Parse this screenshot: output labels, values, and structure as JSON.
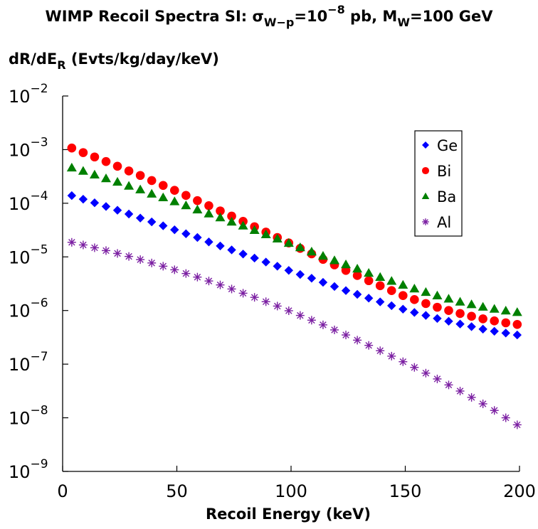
{
  "chart_data": {
    "type": "scatter",
    "title": "WIMP Recoil Spectra SI: σW−p=10−8 pb, MW=100 GeV",
    "title_parts": {
      "prefix": "WIMP Recoil Spectra SI: σ",
      "sigma_sub": "W−p",
      "mid": "=10",
      "exp": "−8",
      "unit": " pb, M",
      "mass_sub": "W",
      "suffix": "=100 GeV"
    },
    "xlabel": "Recoil Energy (keV)",
    "ylabel": "dR/dER (Evts/kg/day/keV)",
    "ylabel_parts": {
      "main": "dR/dE",
      "sub": "R",
      "rest": " (Evts/kg/day/keV)"
    },
    "xlim": [
      0,
      200
    ],
    "ylim": [
      1e-09,
      0.01
    ],
    "yscale": "log",
    "grid": false,
    "legend_position": "top-right",
    "x_ticks": [
      0,
      50,
      100,
      150,
      200
    ],
    "y_ticks": [
      {
        "value": 0.01,
        "base": "10",
        "exp": "−2"
      },
      {
        "value": 0.001,
        "base": "10",
        "exp": "−3"
      },
      {
        "value": 0.0001,
        "base": "10",
        "exp": "−4"
      },
      {
        "value": 1e-05,
        "base": "10",
        "exp": "−5"
      },
      {
        "value": 1e-06,
        "base": "10",
        "exp": "−6"
      },
      {
        "value": 1e-07,
        "base": "10",
        "exp": "−7"
      },
      {
        "value": 1e-08,
        "base": "10",
        "exp": "−8"
      },
      {
        "value": 1e-09,
        "base": "10",
        "exp": "−9"
      }
    ],
    "x": [
      4,
      9,
      14,
      19,
      24,
      29,
      34,
      39,
      44,
      49,
      54,
      59,
      64,
      69,
      74,
      79,
      84,
      89,
      94,
      99,
      104,
      109,
      114,
      119,
      124,
      129,
      134,
      139,
      144,
      149,
      154,
      159,
      164,
      169,
      174,
      179,
      184,
      189,
      194,
      199
    ],
    "series": [
      {
        "name": "Ge",
        "marker": "diamond",
        "color": "#0000ff",
        "values": [
          0.000139,
          0.000119,
          0.000102,
          8.7e-05,
          7.4e-05,
          6.3e-05,
          5.3e-05,
          4.5e-05,
          3.8e-05,
          3.2e-05,
          2.7e-05,
          2.3e-05,
          1.9e-05,
          1.6e-05,
          1.35e-05,
          1.13e-05,
          9.5e-06,
          8e-06,
          6.7e-06,
          5.6e-06,
          4.7e-06,
          4e-06,
          3.35e-06,
          2.8e-06,
          2.35e-06,
          2e-06,
          1.7e-06,
          1.45e-06,
          1.23e-06,
          1.06e-06,
          9.2e-07,
          8.1e-07,
          7.1e-07,
          6.3e-07,
          5.6e-07,
          5e-07,
          4.5e-07,
          4.1e-07,
          3.8e-07,
          3.5e-07
        ]
      },
      {
        "name": "Bi",
        "marker": "circle",
        "color": "#ff0000",
        "values": [
          0.00107,
          0.00088,
          0.00073,
          0.0006,
          0.00049,
          0.0004,
          0.00033,
          0.000265,
          0.000215,
          0.000174,
          0.00014,
          0.000112,
          9e-05,
          7.2e-05,
          5.75e-05,
          4.6e-05,
          3.65e-05,
          2.9e-05,
          2.3e-05,
          1.82e-05,
          1.44e-05,
          1.14e-05,
          9e-06,
          7.1e-06,
          5.6e-06,
          4.5e-06,
          3.6e-06,
          2.9e-06,
          2.35e-06,
          1.9e-06,
          1.6e-06,
          1.35e-06,
          1.15e-06,
          1e-06,
          8.8e-07,
          7.8e-07,
          7e-07,
          6.4e-07,
          5.9e-07,
          5.5e-07
        ]
      },
      {
        "name": "Ba",
        "marker": "triangle",
        "color": "#008000",
        "values": [
          0.00046,
          0.0004,
          0.00034,
          0.00029,
          0.00025,
          0.00021,
          0.00018,
          0.00015,
          0.000128,
          0.000108,
          9.1e-05,
          7.6e-05,
          6.4e-05,
          5.4e-05,
          4.5e-05,
          3.8e-05,
          3.15e-05,
          2.62e-05,
          2.18e-05,
          1.81e-05,
          1.5e-05,
          1.25e-05,
          1.04e-05,
          8.6e-06,
          7.2e-06,
          6e-06,
          5e-06,
          4.2e-06,
          3.55e-06,
          3e-06,
          2.55e-06,
          2.2e-06,
          1.9e-06,
          1.65e-06,
          1.45e-06,
          1.3e-06,
          1.17e-06,
          1.07e-06,
          9.9e-07,
          9.3e-07
        ]
      },
      {
        "name": "Al",
        "marker": "asterisk",
        "color": "#7b1fa2",
        "values": [
          1.87e-05,
          1.67e-05,
          1.48e-05,
          1.31e-05,
          1.16e-05,
          1.02e-05,
          8.9e-06,
          7.7e-06,
          6.7e-06,
          5.75e-06,
          4.9e-06,
          4.2e-06,
          3.55e-06,
          3e-06,
          2.52e-06,
          2.1e-06,
          1.76e-06,
          1.46e-06,
          1.21e-06,
          9.9e-07,
          8.1e-07,
          6.6e-07,
          5.4e-07,
          4.35e-07,
          3.5e-07,
          2.8e-07,
          2.24e-07,
          1.78e-07,
          1.41e-07,
          1.11e-07,
          8.7e-08,
          6.8e-08,
          5.3e-08,
          4.1e-08,
          3.15e-08,
          2.4e-08,
          1.82e-08,
          1.37e-08,
          1e-08,
          7.4e-09
        ]
      }
    ],
    "legend": [
      {
        "label": "Ge",
        "marker": "diamond",
        "color": "#0000ff"
      },
      {
        "label": "Bi",
        "marker": "circle",
        "color": "#ff0000"
      },
      {
        "label": "Ba",
        "marker": "triangle",
        "color": "#008000"
      },
      {
        "label": "Al",
        "marker": "asterisk",
        "color": "#7b1fa2"
      }
    ]
  }
}
